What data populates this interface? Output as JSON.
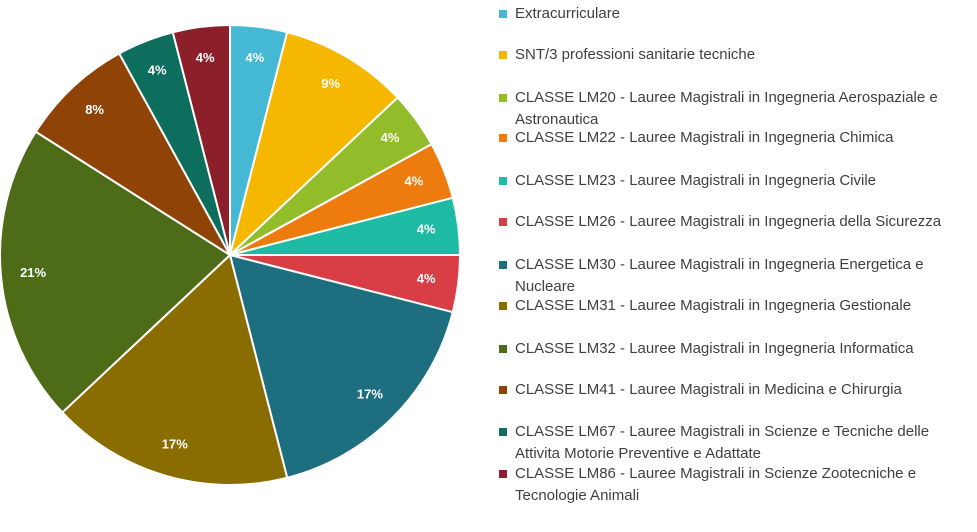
{
  "chart_data": {
    "type": "pie",
    "title": "",
    "legend_position": "right",
    "slices": [
      {
        "label": "Extracurriculare",
        "percent": 4,
        "display": "4%",
        "color": "#45B8D4"
      },
      {
        "label": "SNT/3 professioni sanitarie tecniche",
        "percent": 9,
        "display": "9%",
        "color": "#F5B700"
      },
      {
        "label": "CLASSE LM20 - Lauree Magistrali in Ingegneria Aerospaziale e Astronautica",
        "percent": 4,
        "display": "4%",
        "color": "#92BC2A"
      },
      {
        "label": "CLASSE LM22 - Lauree Magistrali in Ingegneria Chimica",
        "percent": 4,
        "display": "4%",
        "color": "#EE7B0E"
      },
      {
        "label": "CLASSE LM23 - Lauree Magistrali in Ingegneria Civile",
        "percent": 4,
        "display": "4%",
        "color": "#1DBBA4"
      },
      {
        "label": "CLASSE LM26 - Lauree Magistrali in Ingegneria della Sicurezza",
        "percent": 4,
        "display": "4%",
        "color": "#D93D45"
      },
      {
        "label": "CLASSE LM30 - Lauree Magistrali in Ingegneria Energetica e Nucleare",
        "percent": 17,
        "display": "17%",
        "color": "#1D6F80"
      },
      {
        "label": "CLASSE LM31 - Lauree Magistrali in Ingegneria Gestionale",
        "percent": 17,
        "display": "17%",
        "color": "#8A6D00"
      },
      {
        "label": "CLASSE LM32 - Lauree Magistrali in Ingegneria Informatica",
        "percent": 21,
        "display": "21%",
        "color": "#4E6B18"
      },
      {
        "label": "CLASSE LM41 - Lauree Magistrali in Medicina e Chirurgia",
        "percent": 8,
        "display": "8%",
        "color": "#8F4306"
      },
      {
        "label": "CLASSE LM67 - Lauree Magistrali in Scienze e Tecniche delle Attivita Motorie Preventive e Adattate",
        "percent": 4,
        "display": "4%",
        "color": "#0E6E5E"
      },
      {
        "label": "CLASSE LM86 - Lauree Magistrali in Scienze Zootecniche e Tecnologie Animali",
        "percent": 4,
        "display": "4%",
        "color": "#8B1F2A"
      }
    ]
  }
}
